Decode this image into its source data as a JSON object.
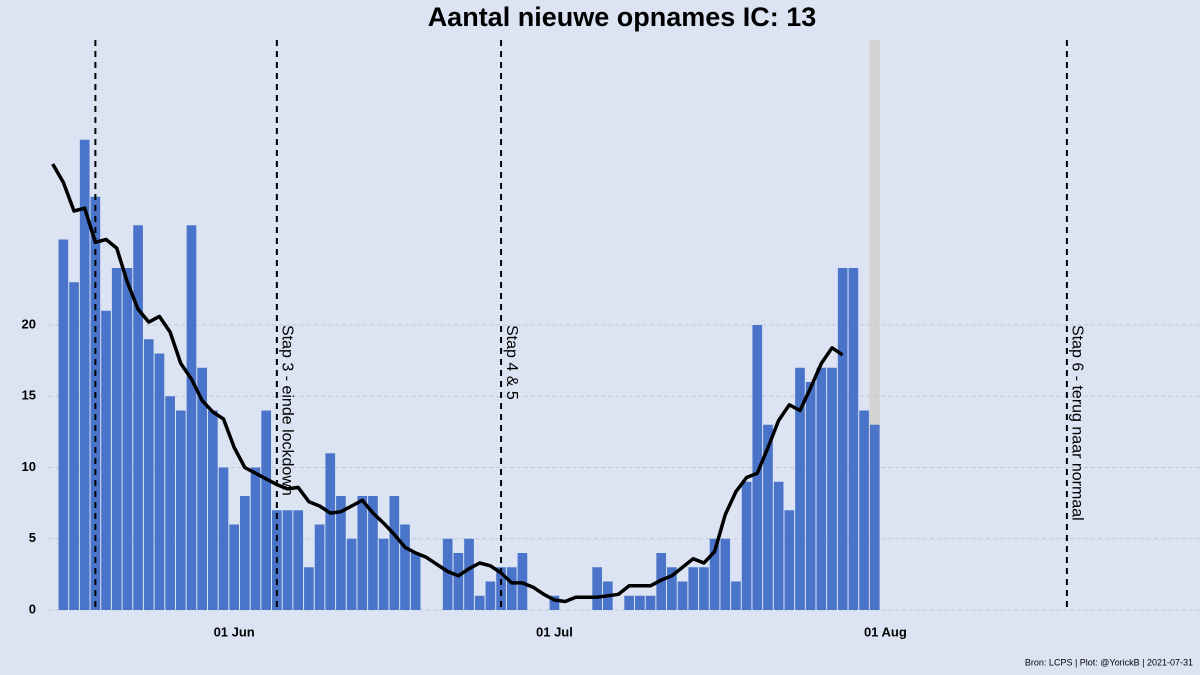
{
  "chart_data": {
    "type": "bar-line",
    "title": "Aantal nieuwe opnames IC:  13",
    "source": "Bron: LCPS | Plot: @YorickB |  2021-07-31",
    "x": [
      "05-15",
      "05-16",
      "05-17",
      "05-18",
      "05-19",
      "05-20",
      "05-21",
      "05-22",
      "05-23",
      "05-24",
      "05-25",
      "05-26",
      "05-27",
      "05-28",
      "05-29",
      "05-30",
      "05-31",
      "06-01",
      "06-02",
      "06-03",
      "06-04",
      "06-05",
      "06-06",
      "06-07",
      "06-08",
      "06-09",
      "06-10",
      "06-11",
      "06-12",
      "06-13",
      "06-14",
      "06-15",
      "06-16",
      "06-17",
      "06-18",
      "06-19",
      "06-20",
      "06-21",
      "06-22",
      "06-23",
      "06-24",
      "06-25",
      "06-26",
      "06-27",
      "06-28",
      "06-29",
      "06-30",
      "07-01",
      "07-02",
      "07-03",
      "07-04",
      "07-05",
      "07-06",
      "07-07",
      "07-08",
      "07-09",
      "07-10",
      "07-11",
      "07-12",
      "07-13",
      "07-14",
      "07-15",
      "07-16",
      "07-17",
      "07-18",
      "07-19",
      "07-20",
      "07-21",
      "07-22",
      "07-23",
      "07-24",
      "07-25",
      "07-26",
      "07-27",
      "07-28",
      "07-29",
      "07-30",
      "07-31"
    ],
    "series": [
      {
        "kind": "bar",
        "color": "#4a74c9",
        "values": [
          null,
          26,
          23,
          33,
          29,
          21,
          24,
          24,
          27,
          19,
          18,
          15,
          14,
          27,
          17,
          14,
          10,
          6,
          8,
          10,
          14,
          7,
          7,
          7,
          3,
          6,
          11,
          8,
          5,
          8,
          8,
          5,
          8,
          6,
          4,
          0,
          0,
          5,
          4,
          5,
          1,
          2,
          3,
          3,
          4,
          0,
          0,
          1,
          0,
          0,
          0,
          3,
          2,
          0,
          1,
          1,
          1,
          4,
          3,
          2,
          3,
          3,
          5,
          5,
          2,
          9,
          20,
          13,
          9,
          7,
          17,
          16,
          17,
          17,
          24,
          24,
          14,
          13
        ]
      },
      {
        "kind": "line",
        "color": "#000000",
        "values": [
          31.3,
          30.0,
          28.0,
          28.2,
          25.8,
          26.0,
          25.4,
          23.0,
          21.1,
          20.2,
          20.6,
          19.5,
          17.3,
          16.2,
          14.7,
          13.9,
          13.4,
          11.4,
          10.0,
          9.6,
          9.2,
          8.8,
          8.5,
          8.6,
          7.6,
          7.3,
          6.8,
          6.9,
          7.3,
          7.7,
          6.8,
          6.1,
          5.3,
          4.4,
          4.0,
          3.7,
          3.2,
          2.7,
          2.4,
          2.9,
          3.3,
          3.1,
          2.6,
          1.9,
          1.9,
          1.6,
          1.1,
          0.7,
          0.6,
          0.9,
          0.9,
          0.9,
          1.0,
          1.1,
          1.7,
          1.7,
          1.7,
          2.1,
          2.4,
          3.0,
          3.6,
          3.3,
          4.1,
          6.7,
          8.3,
          9.3,
          9.6,
          11.4,
          13.3,
          14.4,
          14.0,
          15.6,
          17.3,
          18.4,
          17.9,
          null,
          null,
          null
        ]
      }
    ],
    "highlight": "07-31",
    "vlines": [
      {
        "x": "05-19"
      },
      {
        "x": "06-05",
        "label": "Stap 3 - einde lockdown"
      },
      {
        "x": "06-26",
        "label": "Stap 4 & 5"
      },
      {
        "x": "08-18",
        "label": "Stap 6 - terug naar normaal"
      }
    ],
    "xlim": [
      "05-14",
      "08-30"
    ],
    "xticks": [
      {
        "value": "06-01",
        "label": "01 Jun"
      },
      {
        "value": "07-01",
        "label": "01 Jul"
      },
      {
        "value": "08-01",
        "label": "01 Aug"
      }
    ],
    "ylim": [
      0,
      40
    ],
    "yticks": [
      0,
      5,
      10,
      15,
      20
    ],
    "grid": true
  }
}
